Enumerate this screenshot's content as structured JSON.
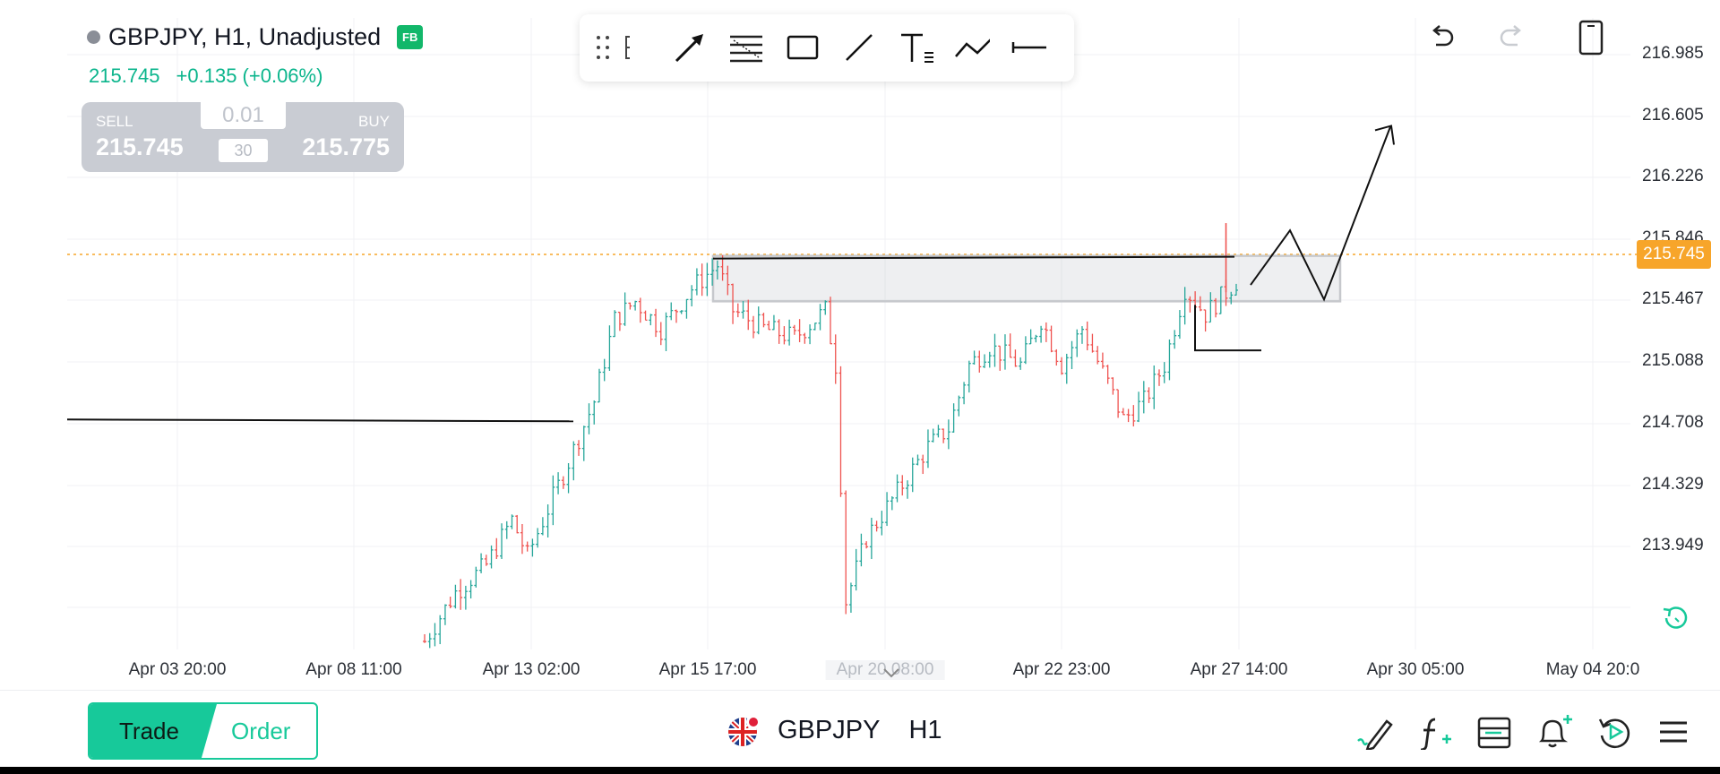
{
  "header": {
    "symbol_line": "GBPJPY, H1, Unadjusted",
    "badge": "FB",
    "last_price": "215.745",
    "change": "+0.135 (+0.06%)"
  },
  "trade_panel": {
    "sell_label": "SELL",
    "sell_price": "215.745",
    "buy_label": "BUY",
    "buy_price": "215.775",
    "lot": "0.01",
    "spread": "30"
  },
  "drawing_toolbar": {
    "tools": [
      "drag-handle-icon",
      "arrow-tool-icon",
      "fib-tool-icon",
      "rectangle-tool-icon",
      "trendline-tool-icon",
      "text-tool-icon",
      "path-tool-icon",
      "horizontal-line-tool-icon"
    ]
  },
  "top_icons": [
    "undo-icon",
    "redo-icon",
    "phone-orientation-icon"
  ],
  "price_axis": {
    "labels": [
      "216.985",
      "216.605",
      "216.226",
      "215.846",
      "215.467",
      "215.088",
      "214.708",
      "214.329",
      "213.949"
    ],
    "current_price_tag": "215.745"
  },
  "time_axis": {
    "labels": [
      "Apr 03 20:00",
      "Apr 08 11:00",
      "Apr 13 02:00",
      "Apr 15 17:00",
      "Apr 20 08:00",
      "Apr 22 23:00",
      "Apr 27 14:00",
      "Apr 30 05:00",
      "May 04 20:0"
    ]
  },
  "bottom_bar": {
    "trade_label": "Trade",
    "order_label": "Order",
    "symbol": "GBPJPY",
    "timeframe": "H1",
    "icons": [
      "draw-pen-icon",
      "indicators-fx-icon",
      "templates-icon",
      "alert-add-icon",
      "replay-icon",
      "menu-icon"
    ]
  },
  "colors": {
    "up": "#26a69a",
    "down": "#ef5350",
    "accent": "#17c99a",
    "price_line": "#f7a52a"
  },
  "chart_data": {
    "type": "candlestick",
    "symbol": "GBPJPY",
    "timeframe": "H1",
    "ylim": [
      213.76,
      217.1
    ],
    "x_ticks": [
      "Apr 03 20:00",
      "Apr 08 11:00",
      "Apr 13 02:00",
      "Apr 15 17:00",
      "Apr 20 08:00",
      "Apr 22 23:00",
      "Apr 27 14:00",
      "Apr 30 05:00",
      "May 04 20:0"
    ],
    "close_path": [
      [
        0,
        213.78
      ],
      [
        6,
        214.05
      ],
      [
        12,
        214.2
      ],
      [
        17,
        214.45
      ],
      [
        20,
        214.25
      ],
      [
        27,
        214.7
      ],
      [
        33,
        215.1
      ],
      [
        37,
        215.55
      ],
      [
        41,
        215.65
      ],
      [
        46,
        215.5
      ],
      [
        52,
        215.72
      ],
      [
        57,
        215.85
      ],
      [
        60,
        215.6
      ],
      [
        66,
        215.5
      ],
      [
        72,
        215.45
      ],
      [
        78,
        215.6
      ],
      [
        80,
        215.3
      ],
      [
        82,
        214.0
      ],
      [
        86,
        214.35
      ],
      [
        92,
        214.6
      ],
      [
        98,
        214.85
      ],
      [
        102,
        214.95
      ],
      [
        106,
        215.3
      ],
      [
        110,
        215.4
      ],
      [
        116,
        215.3
      ],
      [
        120,
        215.55
      ],
      [
        124,
        215.3
      ],
      [
        128,
        215.5
      ],
      [
        133,
        215.2
      ],
      [
        136,
        215.0
      ],
      [
        140,
        215.1
      ],
      [
        144,
        215.3
      ],
      [
        148,
        215.72
      ],
      [
        152,
        215.58
      ],
      [
        156,
        215.7
      ],
      [
        158,
        215.76
      ]
    ],
    "zone": {
      "low": 215.65,
      "high": 215.9
    },
    "support_level": 215.0,
    "minor_level": 215.38,
    "projection_points": [
      215.74,
      216.04,
      215.66,
      216.61
    ]
  }
}
